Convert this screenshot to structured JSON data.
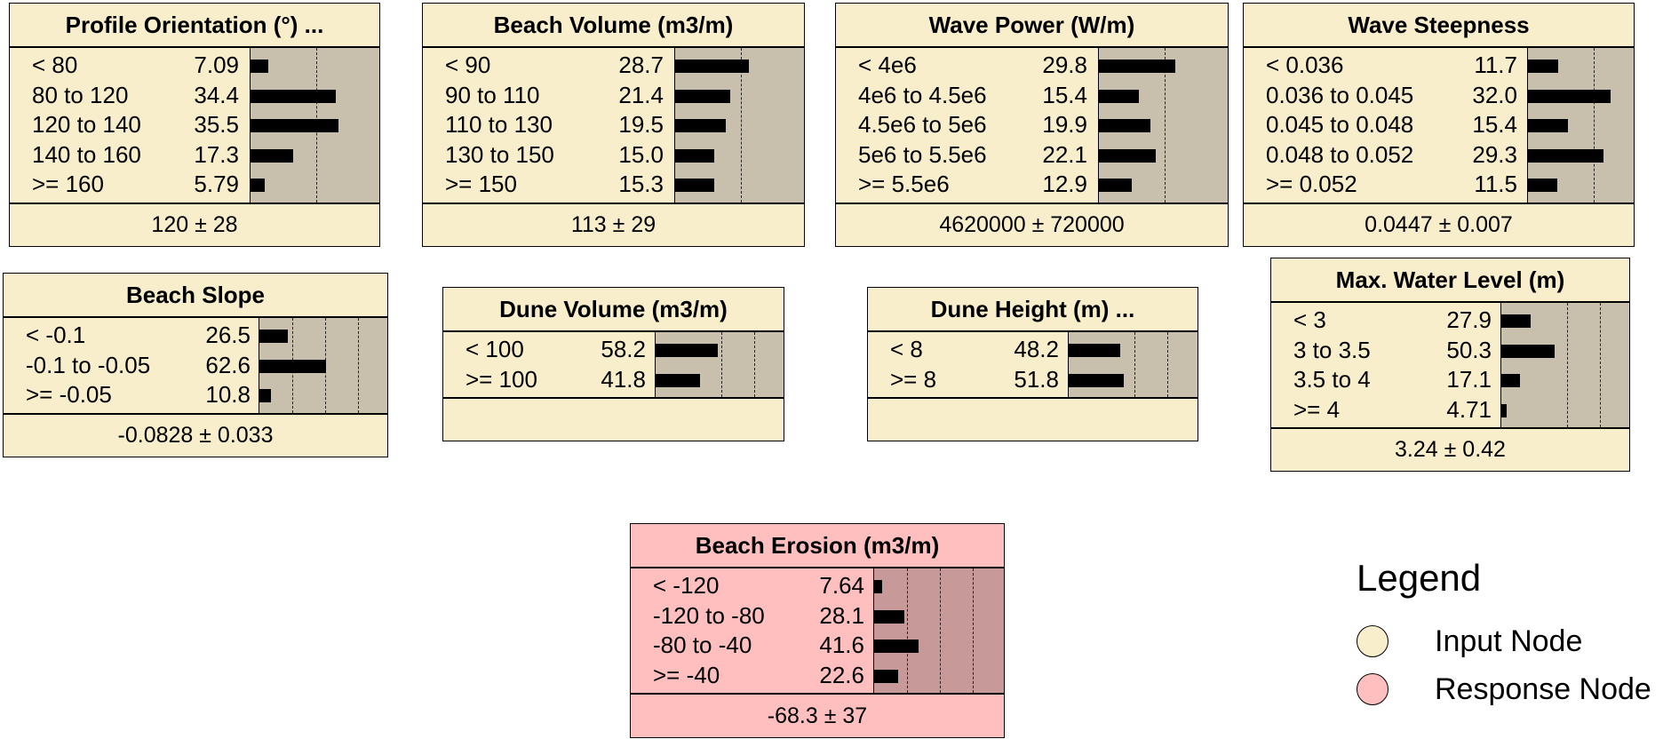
{
  "nodes": [
    {
      "id": "profile-orientation",
      "title": "Profile Orientation (°) ...",
      "type": "input",
      "states": [
        {
          "label": "< 80",
          "value": "7.09",
          "pct": 7.09
        },
        {
          "label": "80 to 120",
          "value": "34.4",
          "pct": 34.4
        },
        {
          "label": "120 to 140",
          "value": "35.5",
          "pct": 35.5
        },
        {
          "label": "140 to 160",
          "value": "17.3",
          "pct": 17.3
        },
        {
          "label": ">= 160",
          "value": "5.79",
          "pct": 5.79
        }
      ],
      "summary": "120 ± 28"
    },
    {
      "id": "beach-volume",
      "title": "Beach Volume (m3/m)",
      "type": "input",
      "states": [
        {
          "label": "< 90",
          "value": "28.7",
          "pct": 28.7
        },
        {
          "label": "90 to 110",
          "value": "21.4",
          "pct": 21.4
        },
        {
          "label": "110 to 130",
          "value": "19.5",
          "pct": 19.5
        },
        {
          "label": "130 to 150",
          "value": "15.0",
          "pct": 15.0
        },
        {
          "label": ">= 150",
          "value": "15.3",
          "pct": 15.3
        }
      ],
      "summary": "113 ± 29"
    },
    {
      "id": "wave-power",
      "title": "Wave Power (W/m)",
      "type": "input",
      "states": [
        {
          "label": "< 4e6",
          "value": "29.8",
          "pct": 29.8
        },
        {
          "label": "4e6 to 4.5e6",
          "value": "15.4",
          "pct": 15.4
        },
        {
          "label": "4.5e6 to 5e6",
          "value": "19.9",
          "pct": 19.9
        },
        {
          "label": "5e6 to 5.5e6",
          "value": "22.1",
          "pct": 22.1
        },
        {
          "label": ">= 5.5e6",
          "value": "12.9",
          "pct": 12.9
        }
      ],
      "summary": "4620000 ± 720000"
    },
    {
      "id": "wave-steepness",
      "title": "Wave Steepness",
      "type": "input",
      "states": [
        {
          "label": "< 0.036",
          "value": "11.7",
          "pct": 11.7
        },
        {
          "label": "0.036 to 0.045",
          "value": "32.0",
          "pct": 32.0
        },
        {
          "label": "0.045 to 0.048",
          "value": "15.4",
          "pct": 15.4
        },
        {
          "label": "0.048 to 0.052",
          "value": "29.3",
          "pct": 29.3
        },
        {
          "label": ">= 0.052",
          "value": "11.5",
          "pct": 11.5
        }
      ],
      "summary": "0.0447 ± 0.007"
    },
    {
      "id": "beach-slope",
      "title": "Beach Slope",
      "type": "input",
      "states": [
        {
          "label": "< -0.1",
          "value": "26.5",
          "pct": 26.5
        },
        {
          "label": "-0.1 to -0.05",
          "value": "62.6",
          "pct": 62.6
        },
        {
          "label": ">= -0.05",
          "value": "10.8",
          "pct": 10.8
        }
      ],
      "summary": "-0.0828 ± 0.033"
    },
    {
      "id": "dune-volume",
      "title": "Dune Volume (m3/m)",
      "type": "input",
      "states": [
        {
          "label": "< 100",
          "value": "58.2",
          "pct": 58.2
        },
        {
          "label": ">= 100",
          "value": "41.8",
          "pct": 41.8
        }
      ],
      "summary": ""
    },
    {
      "id": "dune-height",
      "title": "Dune Height (m)  ...",
      "type": "input",
      "states": [
        {
          "label": "< 8",
          "value": "48.2",
          "pct": 48.2
        },
        {
          "label": ">= 8",
          "value": "51.8",
          "pct": 51.8
        }
      ],
      "summary": ""
    },
    {
      "id": "max-water-level",
      "title": "Max. Water Level (m)",
      "type": "input",
      "states": [
        {
          "label": "< 3",
          "value": "27.9",
          "pct": 27.9
        },
        {
          "label": "3 to 3.5",
          "value": "50.3",
          "pct": 50.3
        },
        {
          "label": "3.5 to 4",
          "value": "17.1",
          "pct": 17.1
        },
        {
          "label": ">= 4",
          "value": "4.71",
          "pct": 4.71
        }
      ],
      "summary": "3.24 ± 0.42"
    },
    {
      "id": "beach-erosion",
      "title": "Beach Erosion (m3/m)",
      "type": "response",
      "states": [
        {
          "label": "< -120",
          "value": "7.64",
          "pct": 7.64
        },
        {
          "label": "-120 to -80",
          "value": "28.1",
          "pct": 28.1
        },
        {
          "label": "-80 to -40",
          "value": "41.6",
          "pct": 41.6
        },
        {
          "label": ">= -40",
          "value": "22.6",
          "pct": 22.6
        }
      ],
      "summary": "-68.3 ± 37"
    }
  ],
  "legend": {
    "title": "Legend",
    "items": [
      {
        "label": "Input Node",
        "color": "#f9eecb"
      },
      {
        "label": "Response Node",
        "color": "#ffbfbf"
      }
    ]
  },
  "colors": {
    "input_node": "#f9eecb",
    "response_node": "#ffbfbf",
    "input_bar_area": "#c8c0ad",
    "response_bar_area": "#c89999",
    "bar": "#000000"
  }
}
